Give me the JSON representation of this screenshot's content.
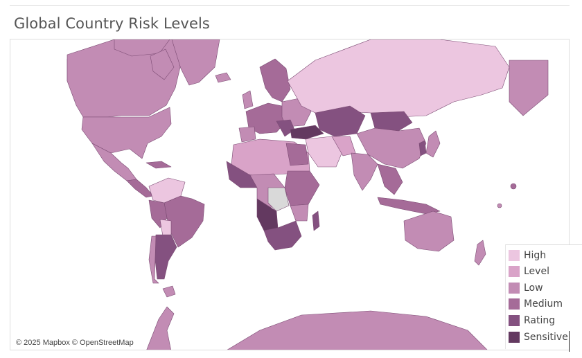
{
  "title": "Global Country Risk Levels",
  "attribution": "© 2025 Mapbox © OpenStreetMap",
  "legend": [
    {
      "label": "High",
      "color": "#ecc6e0"
    },
    {
      "label": "Level",
      "color": "#d9a3c8"
    },
    {
      "label": "Low",
      "color": "#c28cb4"
    },
    {
      "label": "Medium",
      "color": "#a56b98"
    },
    {
      "label": "Rating",
      "color": "#845180"
    },
    {
      "label": "Sensitive",
      "color": "#633960"
    }
  ],
  "colors": {
    "ocean": "#ffffff",
    "no_data": "#d9d9d9",
    "border": "#7a4a72"
  }
}
